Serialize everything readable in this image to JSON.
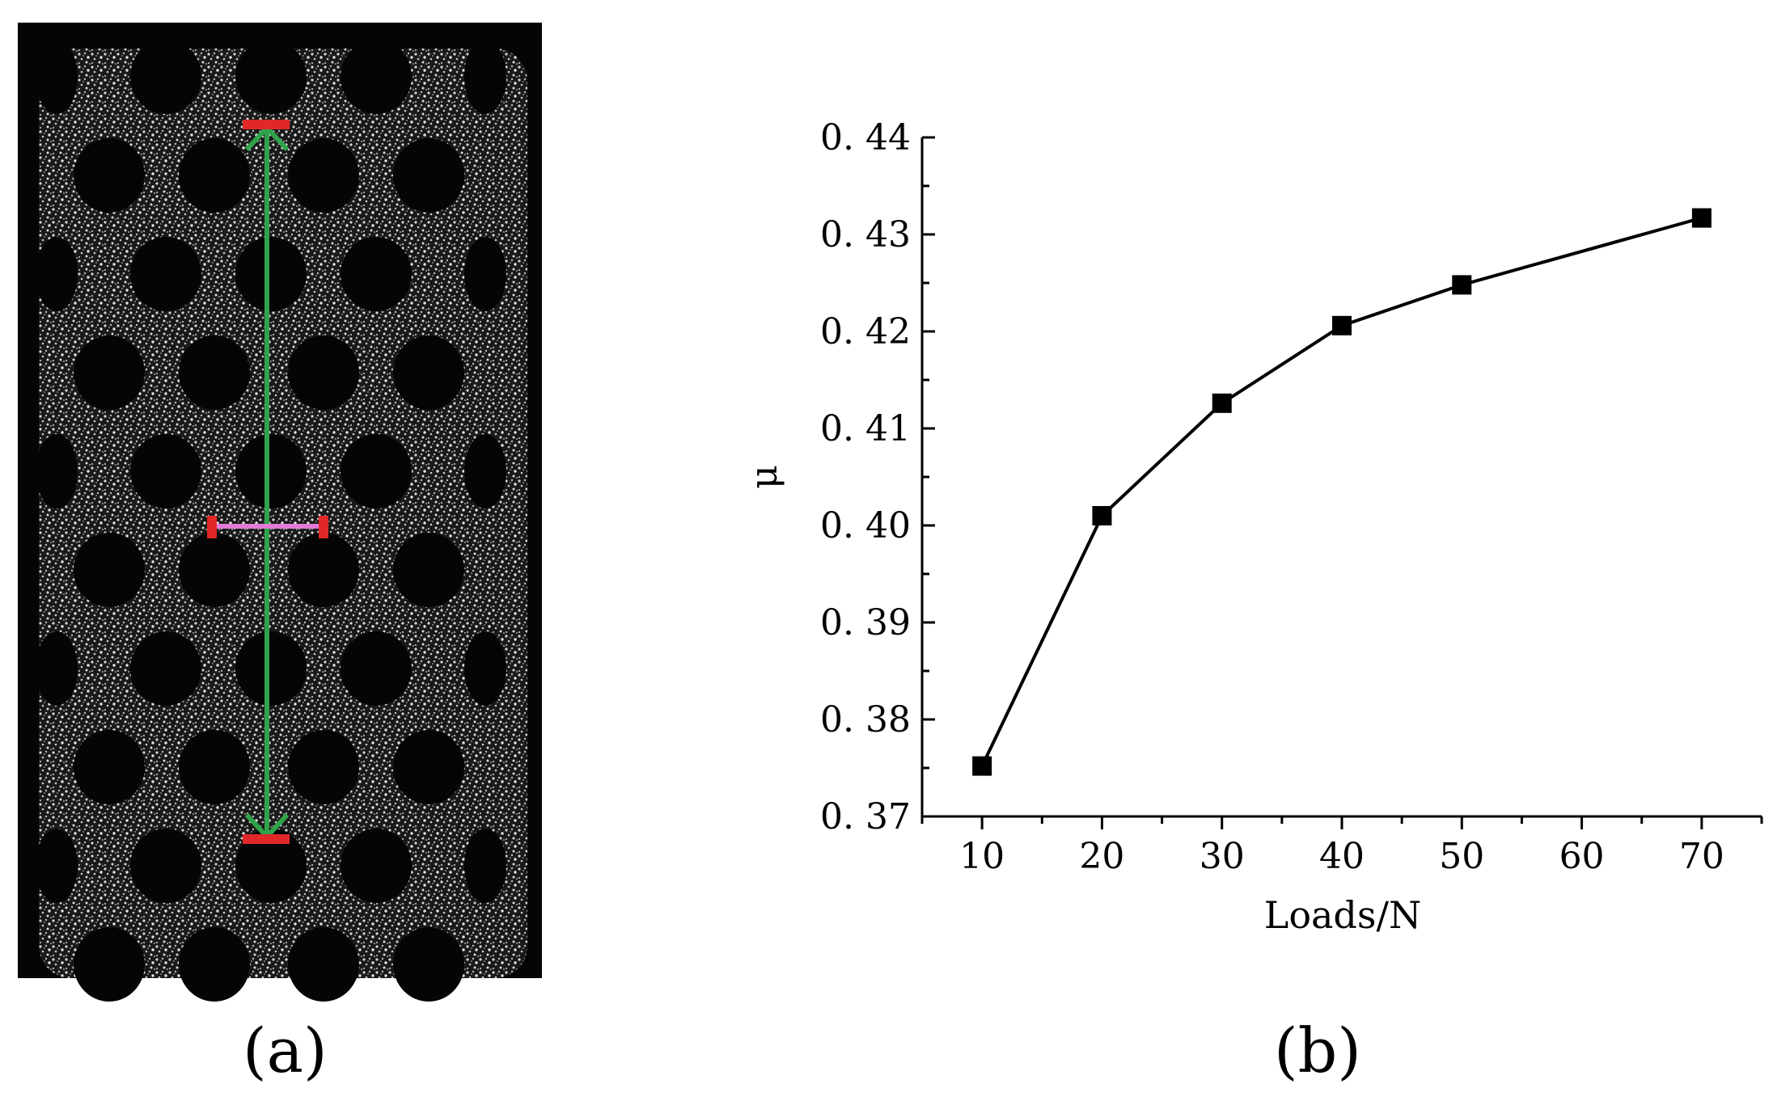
{
  "panels": {
    "a_label": "(a)",
    "b_label": "(b)"
  },
  "photo": {
    "description_icon": "perforated-tube-speckle-photo-icon",
    "colors": {
      "background": "#0a0a0a",
      "speckle": "#d8d8d8",
      "vertical_gauge": "#2fa34a",
      "horizontal_gauge": "#e27ad8",
      "marker": "#e02828"
    }
  },
  "chart_data": {
    "type": "line",
    "xlabel": "Loads/N",
    "ylabel": "μ",
    "x": [
      10,
      20,
      30,
      40,
      50,
      70
    ],
    "series": [
      {
        "values": [
          0.3752,
          0.401,
          0.4126,
          0.4206,
          0.4248,
          0.4317
        ]
      }
    ],
    "xlim": [
      5,
      75
    ],
    "ylim": [
      0.37,
      0.44
    ],
    "xticks": [
      "10",
      "20",
      "30",
      "40",
      "50",
      "60",
      "70"
    ],
    "yticks": [
      "0. 37",
      "0. 38",
      "0. 39",
      "0. 40",
      "0. 41",
      "0. 42",
      "0. 43",
      "0. 44"
    ],
    "marker": "square",
    "grid": false,
    "colors": {
      "line": "#000000",
      "marker": "#000000"
    }
  }
}
